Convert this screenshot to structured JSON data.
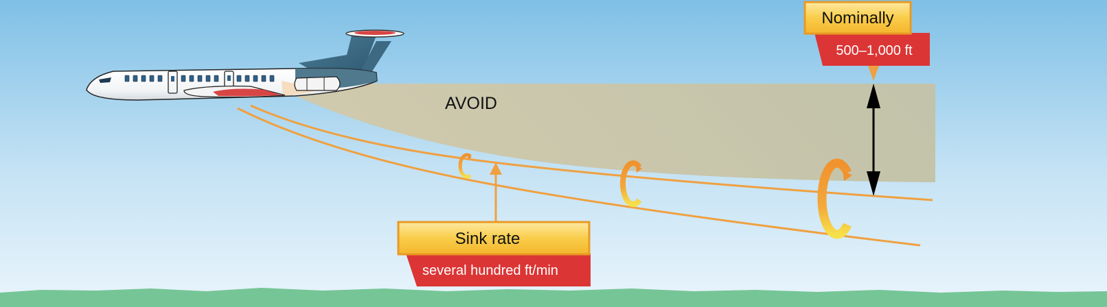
{
  "zone": {
    "label": "AVOID"
  },
  "callouts": {
    "nominally": {
      "title": "Nominally",
      "value": "500–1,000 ft"
    },
    "sink_rate": {
      "title": "Sink rate",
      "value": "several hundred ft/min"
    }
  },
  "icons": {
    "aircraft": "jet-airliner-icon",
    "vortex": "wake-vortex-icon"
  },
  "colors": {
    "sky_top": "#7fc0e6",
    "sky_bottom": "#eaf5fc",
    "ground": "#76c596",
    "avoid_zone": "#c8c3a6",
    "wake_line": "#f0a040",
    "callout_title_bg": "#f8c840",
    "callout_value_bg": "#dc3535"
  }
}
